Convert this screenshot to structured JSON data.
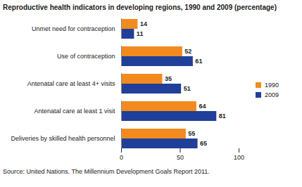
{
  "chart_data": {
    "type": "bar",
    "orientation": "horizontal",
    "title": "Reproductive health indicators in developing regions, 1990 and 2009 (percentage)",
    "caption": "Source: United Nations. The Millennium Development Goals Report 2011.",
    "categories": [
      "Unmet need for contraception",
      "Use of contraception",
      "Antenatal care at least 4+ visits",
      "Antenatal care at least 1 visit",
      "Deliveries by skilled health personnel"
    ],
    "series": [
      {
        "name": "1990",
        "color": "#f28a1e",
        "values": [
          14,
          52,
          35,
          64,
          55
        ]
      },
      {
        "name": "2009",
        "color": "#1f3f99",
        "values": [
          11,
          61,
          51,
          81,
          65
        ]
      }
    ],
    "xlim": [
      0,
      100
    ],
    "xticks": [
      0,
      50,
      100
    ],
    "grid": false,
    "legend": "right",
    "data_labels": true
  }
}
